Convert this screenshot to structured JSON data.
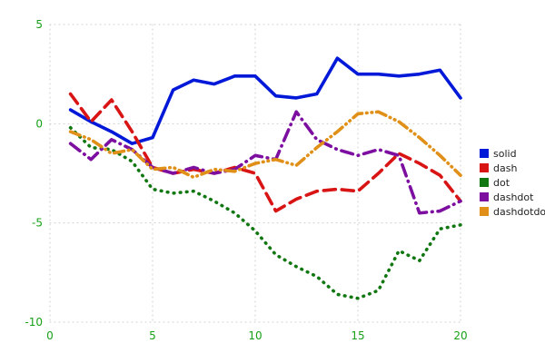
{
  "chart_data": {
    "type": "line",
    "title": "",
    "xlabel": "",
    "ylabel": "",
    "xlim": [
      0,
      20
    ],
    "ylim": [
      -10,
      5
    ],
    "xticks": [
      0,
      5,
      10,
      15,
      20
    ],
    "yticks": [
      -10,
      -5,
      0,
      5
    ],
    "grid": true,
    "grid_style": "dotted",
    "grid_color": "#cccccc",
    "tick_color": "#18a018",
    "legend_position": "right",
    "x": [
      1,
      2,
      3,
      4,
      5,
      6,
      7,
      8,
      9,
      10,
      11,
      12,
      13,
      14,
      15,
      16,
      17,
      18,
      19,
      20
    ],
    "series": [
      {
        "name": "solid",
        "style": "solid",
        "color": "#0018d8",
        "values": [
          0.7,
          0.1,
          -0.4,
          -1.0,
          -0.7,
          1.7,
          2.2,
          2.0,
          2.4,
          2.4,
          1.4,
          1.3,
          1.5,
          3.3,
          2.5,
          2.5,
          2.4,
          2.5,
          2.7,
          1.3
        ]
      },
      {
        "name": "dash",
        "style": "dash",
        "color": "#d81414",
        "values": [
          1.5,
          0.1,
          1.2,
          -0.4,
          -2.2,
          -2.5,
          -2.3,
          -2.5,
          -2.2,
          -2.5,
          -4.4,
          -3.8,
          -3.4,
          -3.3,
          -3.4,
          -2.5,
          -1.5,
          -2.0,
          -2.6,
          -3.9
        ]
      },
      {
        "name": "dot",
        "style": "dot",
        "color": "#117711",
        "values": [
          -0.2,
          -1.2,
          -1.3,
          -1.9,
          -3.3,
          -3.5,
          -3.4,
          -3.9,
          -4.5,
          -5.4,
          -6.6,
          -7.2,
          -7.7,
          -8.6,
          -8.8,
          -8.4,
          -6.4,
          -6.9,
          -5.3,
          -5.1
        ]
      },
      {
        "name": "dashdot",
        "style": "dashdot",
        "color": "#7d0fa0",
        "values": [
          -1.0,
          -1.8,
          -0.8,
          -1.3,
          -2.2,
          -2.5,
          -2.2,
          -2.5,
          -2.3,
          -1.6,
          -1.8,
          0.6,
          -0.8,
          -1.3,
          -1.6,
          -1.3,
          -1.6,
          -4.5,
          -4.4,
          -3.9
        ]
      },
      {
        "name": "dashdotdot",
        "style": "dashdotdot",
        "color": "#e09018",
        "values": [
          -0.4,
          -0.8,
          -1.5,
          -1.3,
          -2.3,
          -2.2,
          -2.7,
          -2.3,
          -2.4,
          -2.0,
          -1.8,
          -2.1,
          -1.2,
          -0.4,
          0.5,
          0.6,
          0.1,
          -0.7,
          -1.6,
          -2.6
        ]
      }
    ]
  }
}
